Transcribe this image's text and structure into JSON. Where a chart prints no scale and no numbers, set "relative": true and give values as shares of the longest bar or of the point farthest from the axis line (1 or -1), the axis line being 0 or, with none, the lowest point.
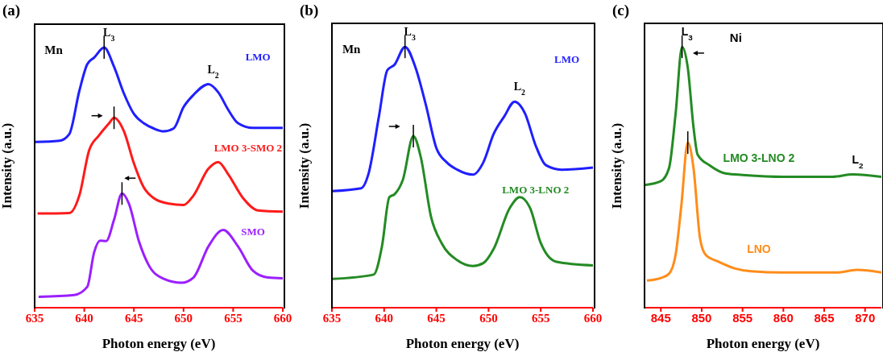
{
  "chart_data": [
    {
      "type": "line",
      "relative": true,
      "title": "(a)",
      "xlabel": "Photon energy (eV)",
      "ylabel": "Intensity (a.u.)",
      "xlim": [
        635,
        660
      ],
      "xticks": [
        635,
        640,
        645,
        650,
        655,
        660
      ],
      "annotations": [
        "Mn",
        {
          "text": "L$_{3}$",
          "x": 642,
          "y": 1.0
        },
        {
          "text": "L$_{2}$",
          "x": 652.5,
          "y": 0.859
        }
      ],
      "series": [
        {
          "name": "LMO",
          "color": "#1f1fff",
          "x": [
            635,
            637.5,
            638.5,
            639.5,
            640.3,
            641,
            642,
            643,
            644,
            645,
            646,
            647,
            648,
            649,
            650,
            651,
            652.5,
            653.5,
            654.5,
            655.5,
            657,
            660
          ],
          "values": [
            0.637,
            0.642,
            0.668,
            0.833,
            0.936,
            0.962,
            1.0,
            0.926,
            0.823,
            0.745,
            0.709,
            0.689,
            0.678,
            0.689,
            0.771,
            0.818,
            0.859,
            0.828,
            0.761,
            0.709,
            0.691,
            0.691
          ]
        },
        {
          "name": "LMO 3-SMO 2",
          "color": "#ff1a1a",
          "x": [
            635.3,
            638.5,
            639.5,
            640.5,
            641.5,
            642.5,
            643,
            644,
            645,
            646,
            647,
            648.5,
            650,
            651,
            652.5,
            653.5,
            654.5,
            656,
            657.5,
            660
          ],
          "values": [
            0.362,
            0.364,
            0.431,
            0.606,
            0.663,
            0.709,
            0.73,
            0.678,
            0.555,
            0.462,
            0.421,
            0.4,
            0.395,
            0.431,
            0.534,
            0.56,
            0.513,
            0.421,
            0.374,
            0.369
          ]
        },
        {
          "name": "SMO",
          "color": "#9b1fff",
          "x": [
            635.4,
            639,
            640.3,
            641,
            641.6,
            642.2,
            643,
            643.8,
            644.5,
            645.5,
            646.5,
            648,
            649.8,
            651,
            652.5,
            654,
            655.5,
            657,
            658.5,
            660
          ],
          "values": [
            0.042,
            0.049,
            0.08,
            0.214,
            0.258,
            0.256,
            0.338,
            0.439,
            0.4,
            0.256,
            0.163,
            0.111,
            0.096,
            0.116,
            0.235,
            0.299,
            0.235,
            0.142,
            0.116,
            0.113
          ]
        }
      ]
    },
    {
      "type": "line",
      "relative": true,
      "title": "(b)",
      "xlabel": "Photon energy (eV)",
      "ylabel": "Intensity (a.u.)",
      "xlim": [
        635,
        660
      ],
      "xticks": [
        635,
        640,
        645,
        650,
        655,
        660
      ],
      "annotations": [
        "Mn",
        {
          "text": "L$_{3}$",
          "x": 642,
          "y": 1.0
        },
        {
          "text": "L$_{2}$",
          "x": 652.5,
          "y": 0.79
        }
      ],
      "series": [
        {
          "name": "LMO",
          "color": "#1f1fff",
          "x": [
            635,
            637.8,
            638.5,
            639.5,
            640.3,
            641,
            642,
            643,
            644,
            645,
            646,
            647,
            648.5,
            649.5,
            650.5,
            651.5,
            652.5,
            653.5,
            654.5,
            655.5,
            657,
            660
          ],
          "values": [
            0.447,
            0.458,
            0.513,
            0.733,
            0.91,
            0.932,
            1.0,
            0.921,
            0.777,
            0.612,
            0.557,
            0.529,
            0.51,
            0.557,
            0.667,
            0.733,
            0.79,
            0.744,
            0.623,
            0.546,
            0.529,
            0.537
          ]
        },
        {
          "name": "LMO 3-LNO 2",
          "color": "#238b23",
          "x": [
            635,
            639,
            639.8,
            640.5,
            641,
            641.8,
            642.8,
            643.5,
            644.5,
            645.5,
            647,
            648.5,
            649.5,
            650.5,
            652,
            653,
            654,
            655,
            656.5,
            660
          ],
          "values": [
            0.11,
            0.127,
            0.237,
            0.424,
            0.435,
            0.491,
            0.658,
            0.579,
            0.347,
            0.248,
            0.182,
            0.16,
            0.171,
            0.226,
            0.38,
            0.424,
            0.38,
            0.248,
            0.176,
            0.162
          ]
        }
      ]
    },
    {
      "type": "line",
      "relative": true,
      "title": "(c)",
      "xlabel": "Photon energy (eV)",
      "ylabel": "Intensity (a.u.)",
      "xlim": [
        843,
        872
      ],
      "xticks": [
        845,
        850,
        855,
        860,
        865,
        870
      ],
      "annotations": [
        "Ni",
        {
          "text": "L$_{3}$",
          "x": 847.6,
          "y": 1.0
        },
        {
          "text": "L$_{2}$",
          "x": 868.5,
          "y": 0.511
        }
      ],
      "series": [
        {
          "name": "LMO 3-LNO 2",
          "color": "#238b23",
          "x": [
            843,
            845,
            846,
            846.8,
            847.6,
            848.3,
            849,
            849.5,
            851,
            853,
            855,
            860,
            866,
            868.5,
            872
          ],
          "values": [
            0.47,
            0.485,
            0.535,
            0.742,
            1.0,
            0.919,
            0.691,
            0.587,
            0.545,
            0.514,
            0.509,
            0.502,
            0.502,
            0.511,
            0.502
          ]
        },
        {
          "name": "LNO",
          "color": "#ff8c1a",
          "x": [
            843.3,
            845,
            846,
            846.8,
            847.5,
            848.3,
            849,
            849.8,
            850.5,
            852,
            854,
            856,
            860,
            866.5,
            869,
            872
          ],
          "values": [
            0.104,
            0.114,
            0.13,
            0.202,
            0.389,
            0.633,
            0.535,
            0.265,
            0.202,
            0.177,
            0.151,
            0.14,
            0.135,
            0.135,
            0.145,
            0.135
          ]
        }
      ]
    }
  ]
}
